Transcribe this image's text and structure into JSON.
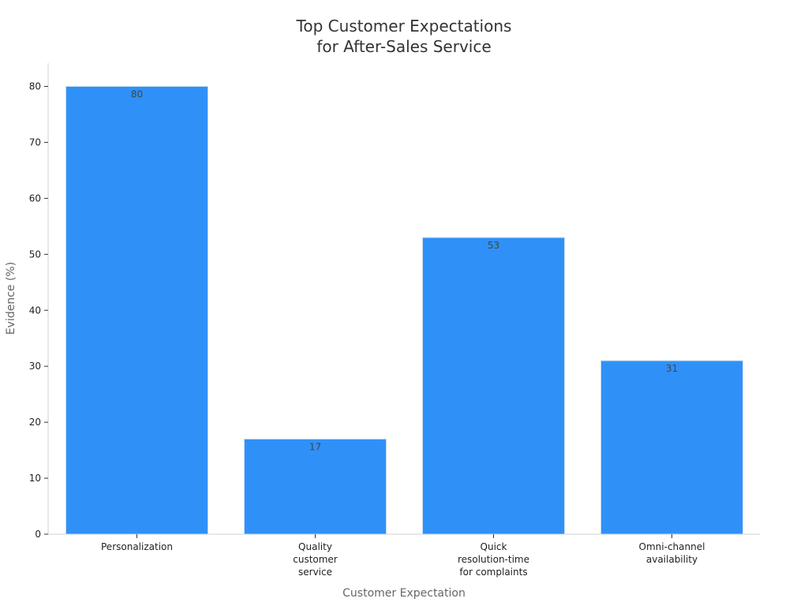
{
  "chart_data": {
    "type": "bar",
    "title": [
      "Top Customer Expectations",
      "for After-Sales Service"
    ],
    "xlabel": "Customer Expectation",
    "ylabel": "Evidence (%)",
    "categories": [
      [
        "Personalization"
      ],
      [
        "Quality",
        "customer",
        "service"
      ],
      [
        "Quick",
        "resolution-time",
        "for complaints"
      ],
      [
        "Omni-channel",
        "availability"
      ]
    ],
    "values": [
      80,
      17,
      53,
      31
    ],
    "ylim": [
      0,
      84
    ],
    "yticks": [
      0,
      10,
      20,
      30,
      40,
      50,
      60,
      70,
      80
    ],
    "grid": false,
    "legend": "none",
    "bar_color": "#2f91f8"
  }
}
